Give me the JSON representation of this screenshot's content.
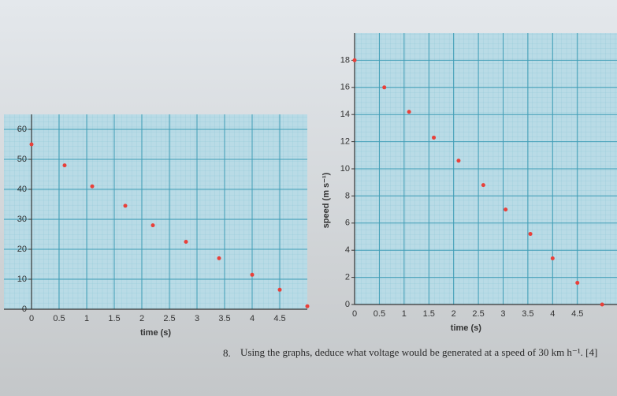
{
  "chart_data": [
    {
      "type": "scatter",
      "x_label": "time (s)",
      "x": [
        0,
        0.6,
        1.1,
        1.7,
        2.2,
        2.8,
        3.4,
        4,
        4.5,
        5
      ],
      "values": [
        55,
        48,
        41,
        34.5,
        28,
        22.5,
        17,
        11.5,
        6.5,
        1
      ],
      "color": "#e8403a",
      "xlim": [
        -0.5,
        5
      ],
      "xticks": [
        0,
        0.5,
        1,
        1.5,
        2,
        2.5,
        3,
        3.5,
        4,
        4.5
      ],
      "ylim": [
        0,
        65
      ],
      "yticks": [
        0,
        10,
        20,
        30,
        40,
        50,
        60
      ],
      "grid": true
    },
    {
      "type": "scatter",
      "x_label": "time (s)",
      "y_label": "speed (m s⁻¹)",
      "x": [
        0,
        0.6,
        1.1,
        1.6,
        2.1,
        2.6,
        3.05,
        3.55,
        4,
        4.5,
        5
      ],
      "values": [
        18,
        16,
        14.2,
        12.3,
        10.6,
        8.8,
        7,
        5.2,
        3.4,
        1.6,
        0
      ],
      "color": "#e8403a",
      "xlim": [
        0,
        5.3
      ],
      "xticks": [
        0,
        0.5,
        1,
        1.5,
        2,
        2.5,
        3,
        3.5,
        4,
        4.5
      ],
      "ylim": [
        0,
        20
      ],
      "yticks": [
        0,
        2,
        4,
        6,
        8,
        10,
        12,
        14,
        16,
        18
      ],
      "grid": true
    }
  ],
  "question": {
    "number": "8.",
    "text": "Using the graphs, deduce what voltage would be generated at a speed of 30 km h⁻¹. [4]"
  }
}
